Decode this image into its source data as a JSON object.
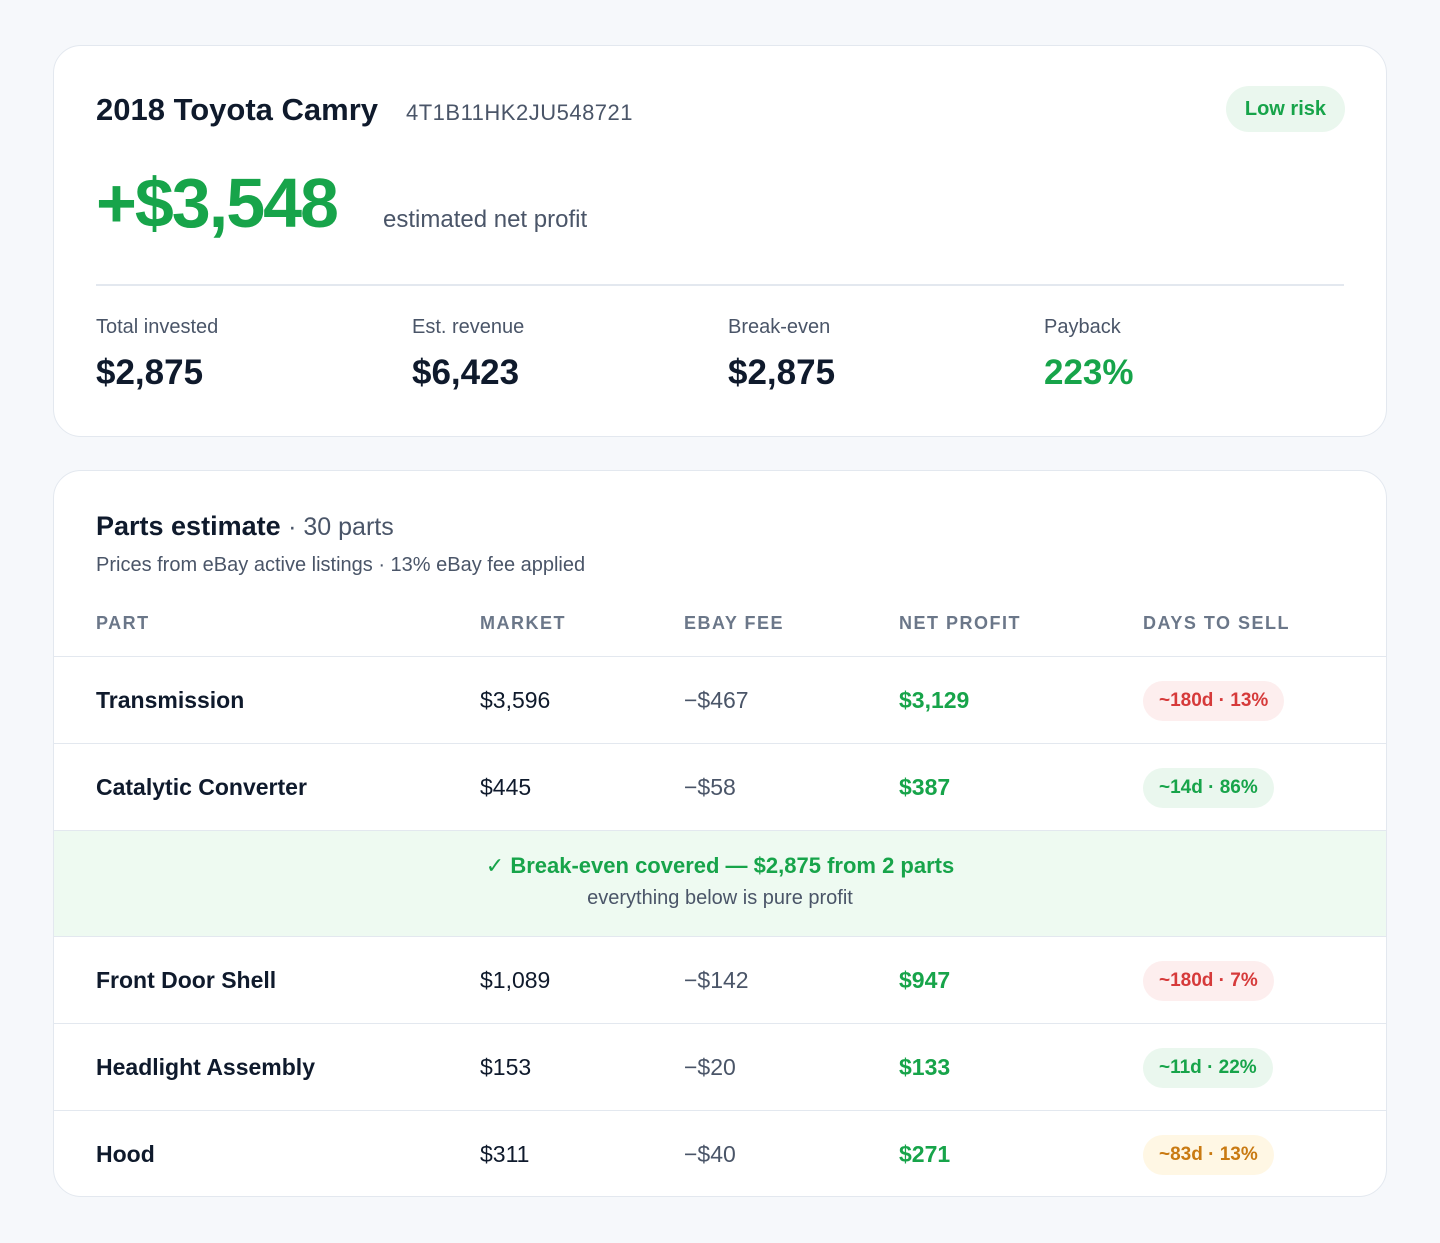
{
  "vehicle": {
    "title": "2018 Toyota Camry",
    "vin": "4T1B11HK2JU548721",
    "risk": "Low risk",
    "net_profit": "+$3,548",
    "net_profit_caption": "estimated net profit"
  },
  "stats": [
    {
      "label": "Total invested",
      "value": "$2,875"
    },
    {
      "label": "Est. revenue",
      "value": "$6,423"
    },
    {
      "label": "Break-even",
      "value": "$2,875"
    },
    {
      "label": "Payback",
      "value": "223%"
    }
  ],
  "parts": {
    "title": "Parts estimate",
    "count": "· 30 parts",
    "subtitle": "Prices from eBay active listings · 13% eBay fee applied",
    "columns": [
      "PART",
      "MARKET",
      "EBAY FEE",
      "NET PROFIT",
      "DAYS TO SELL"
    ],
    "rows": [
      {
        "part": "Transmission",
        "market": "$3,596",
        "fee": "−$467",
        "net": "$3,129",
        "days": "~180d · 13%",
        "tone": "red"
      },
      {
        "part": "Catalytic Converter",
        "market": "$445",
        "fee": "−$58",
        "net": "$387",
        "days": "~14d · 86%",
        "tone": "green"
      },
      {
        "part": "Front Door Shell",
        "market": "$1,089",
        "fee": "−$142",
        "net": "$947",
        "days": "~180d · 7%",
        "tone": "red"
      },
      {
        "part": "Headlight Assembly",
        "market": "$153",
        "fee": "−$20",
        "net": "$133",
        "days": "~11d · 22%",
        "tone": "green"
      },
      {
        "part": "Hood",
        "market": "$311",
        "fee": "−$40",
        "net": "$271",
        "days": "~83d · 13%",
        "tone": "amber"
      }
    ],
    "breakeven": {
      "main": "✓ Break-even covered — $2,875 from 2 parts",
      "sub": "everything below is pure profit"
    }
  },
  "colors": {
    "accent_green": "#17a44a",
    "danger_red": "#d63a3a",
    "warning_amber": "#c97a12",
    "text_dark": "#0f1a2c"
  }
}
